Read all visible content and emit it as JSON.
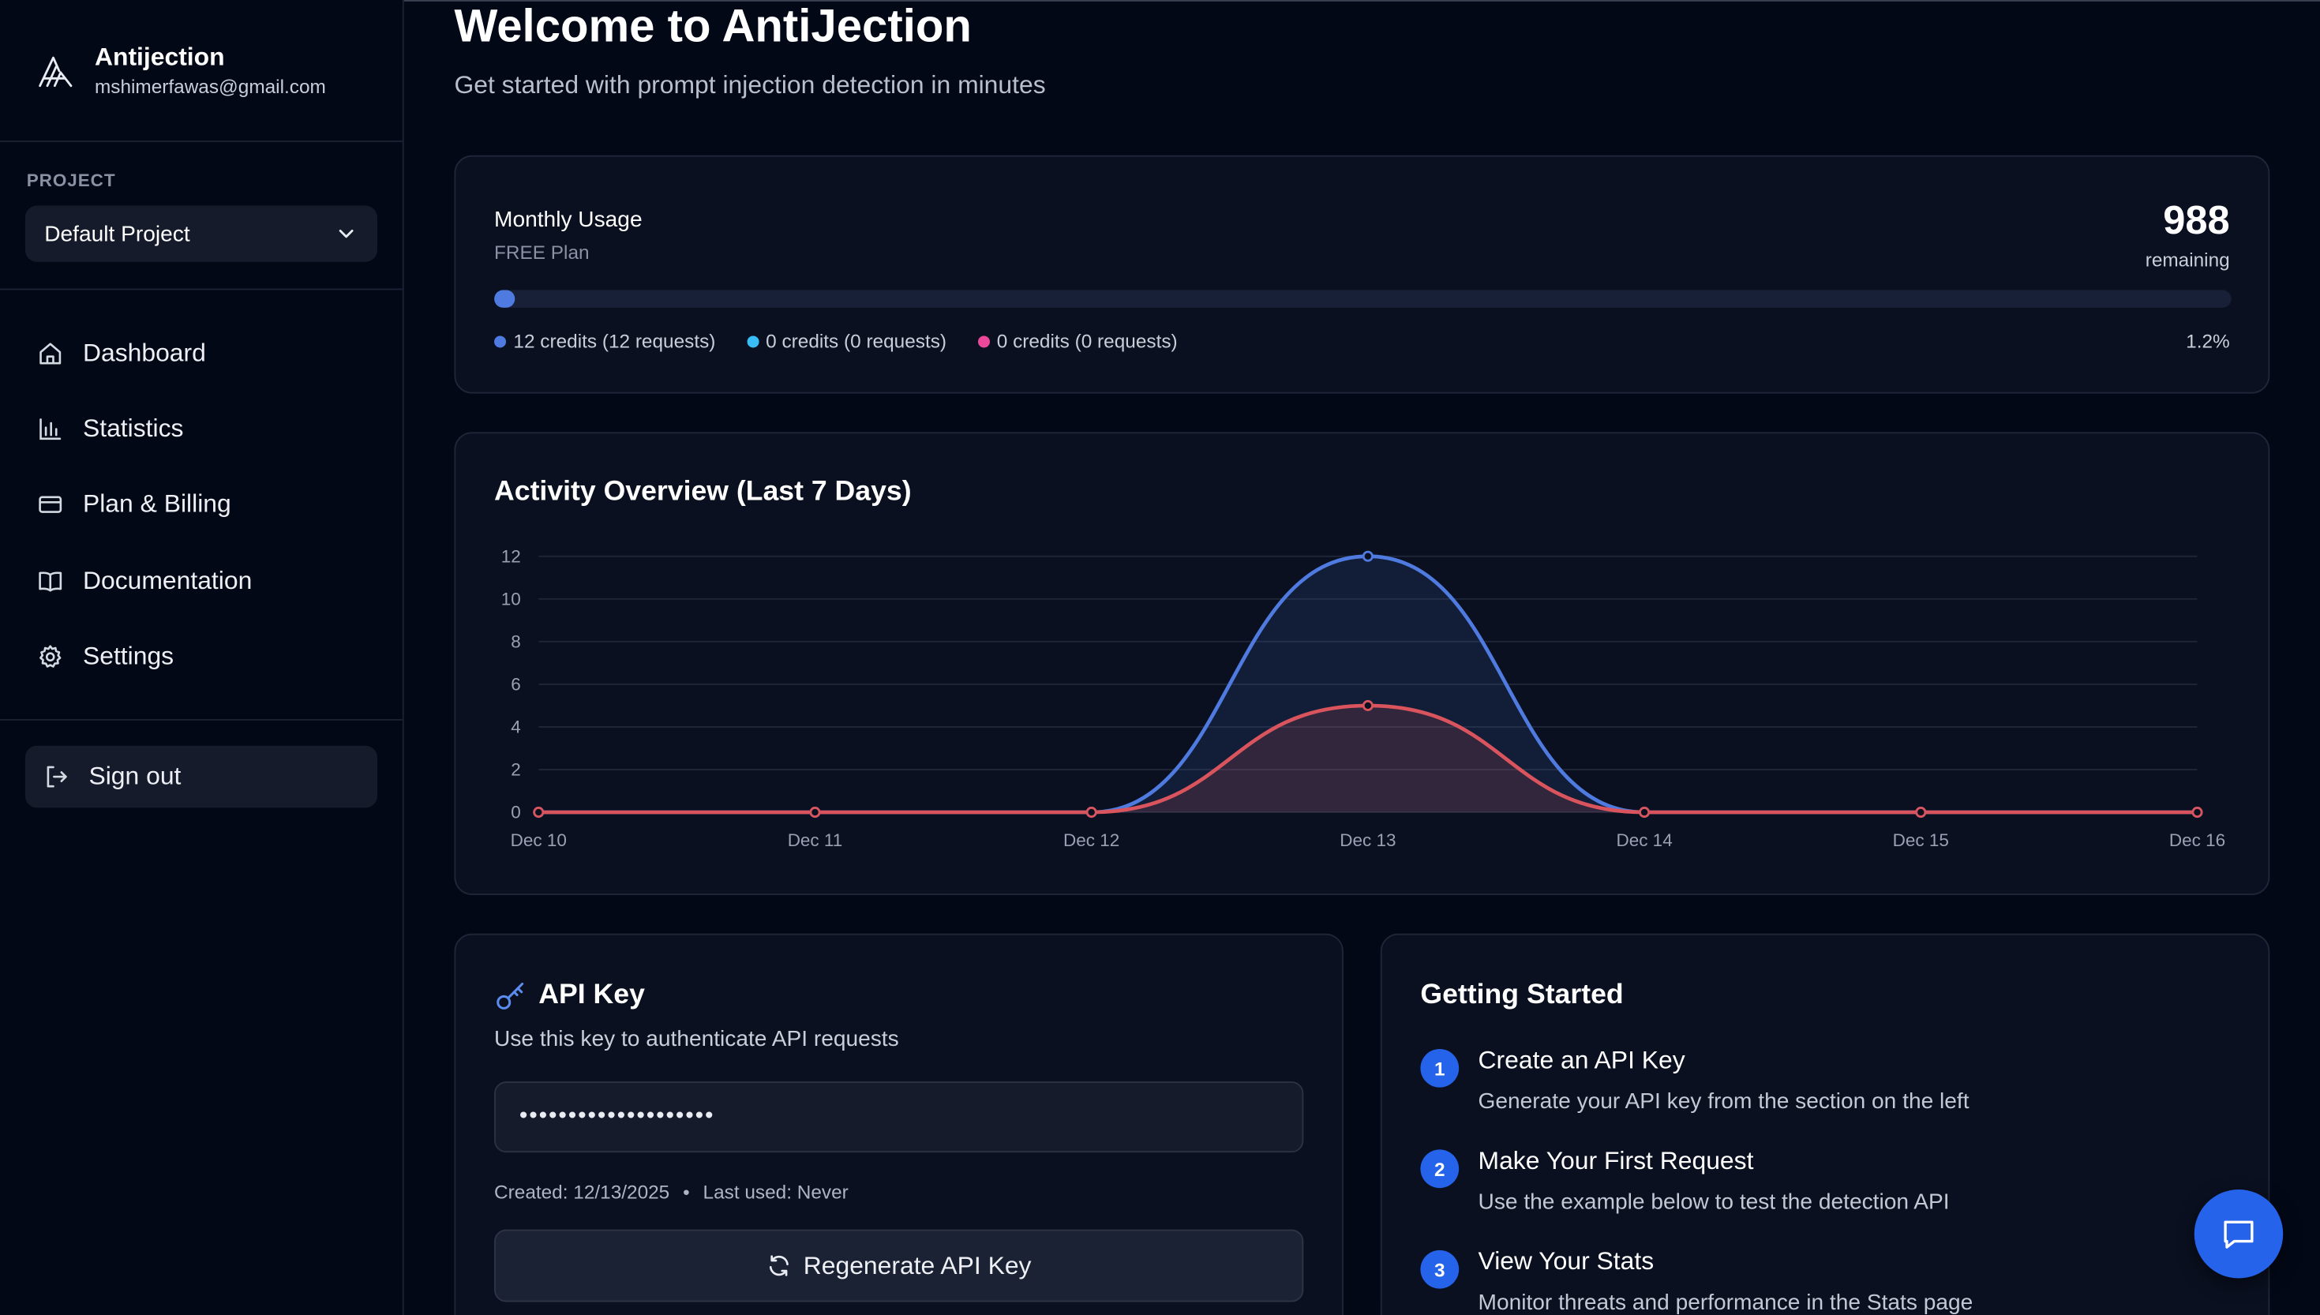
{
  "brand": {
    "name": "Antijection",
    "email": "mshimerfawas@gmail.com"
  },
  "project": {
    "label": "PROJECT",
    "selected": "Default Project"
  },
  "nav": {
    "dashboard": "Dashboard",
    "statistics": "Statistics",
    "billing": "Plan & Billing",
    "documentation": "Documentation",
    "settings": "Settings"
  },
  "signout": "Sign out",
  "header": {
    "title": "Welcome to AntiJection",
    "subtitle": "Get started with prompt injection detection in minutes"
  },
  "usage": {
    "title": "Monthly Usage",
    "plan": "FREE Plan",
    "remaining_value": "988",
    "remaining_label": "remaining",
    "percent": "1.2%",
    "progress_fraction": 0.012,
    "legend": [
      {
        "text": "12 credits (12 requests)",
        "color": "#4f7be0"
      },
      {
        "text": "0 credits (0 requests)",
        "color": "#38bdf8"
      },
      {
        "text": "0 credits (0 requests)",
        "color": "#ec4899"
      }
    ]
  },
  "activity": {
    "title": "Activity Overview (Last 7 Days)"
  },
  "chart_data": {
    "type": "area",
    "title": "Activity Overview (Last 7 Days)",
    "categories": [
      "Dec 10",
      "Dec 11",
      "Dec 12",
      "Dec 13",
      "Dec 14",
      "Dec 15",
      "Dec 16"
    ],
    "yticks": [
      0,
      2,
      4,
      6,
      8,
      10,
      12
    ],
    "ylim": [
      0,
      12
    ],
    "grid": true,
    "series": [
      {
        "values": [
          0,
          0,
          0,
          12,
          0,
          0,
          0
        ],
        "color": "#4f7be0"
      },
      {
        "values": [
          0,
          0,
          0,
          5,
          0,
          0,
          0
        ],
        "color": "#d9545c"
      }
    ]
  },
  "apikey": {
    "title": "API Key",
    "description": "Use this key to authenticate API requests",
    "masked_value": "••••••••••••••••••••",
    "created": "Created: 12/13/2025",
    "separator": "•",
    "last_used": "Last used: Never",
    "regenerate": "Regenerate API Key"
  },
  "getting_started": {
    "title": "Getting Started",
    "steps": [
      {
        "num": "1",
        "title": "Create an API Key",
        "desc": "Generate your API key from the section on the left"
      },
      {
        "num": "2",
        "title": "Make Your First Request",
        "desc": "Use the example below to test the detection API"
      },
      {
        "num": "3",
        "title": "View Your Stats",
        "desc": "Monitor threats and performance in the Stats page"
      }
    ]
  },
  "icons": {
    "logo": "antijection-logo",
    "chevron": "chevron-down-icon",
    "dashboard": "home-icon",
    "statistics": "bar-chart-icon",
    "billing": "credit-card-icon",
    "documentation": "book-icon",
    "settings": "gear-icon",
    "signout": "sign-out-icon",
    "key": "key-icon",
    "refresh": "refresh-icon",
    "chat": "chat-icon"
  }
}
